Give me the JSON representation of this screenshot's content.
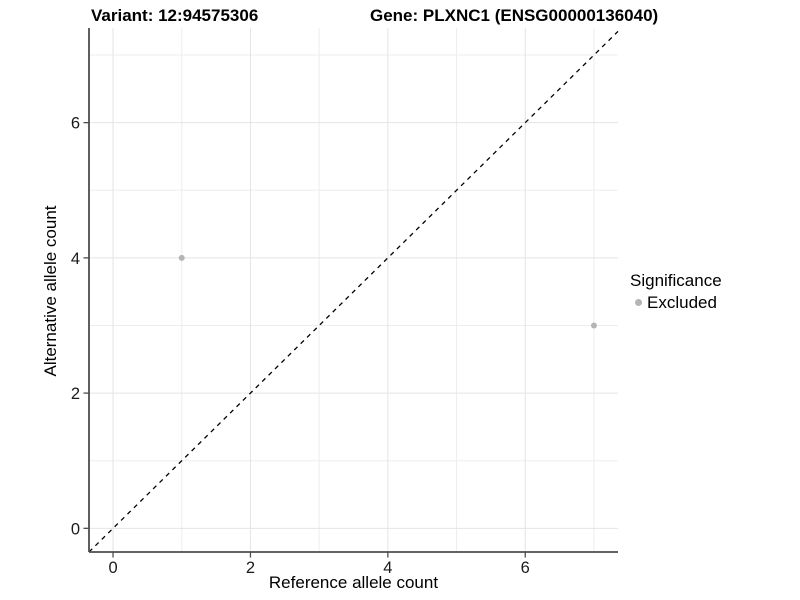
{
  "titles": {
    "variant": "Variant: 12:94575306",
    "gene": "Gene: PLXNC1 (ENSG00000136040)"
  },
  "chart_data": {
    "type": "scatter",
    "xlabel": "Reference allele count",
    "ylabel": "Alternative allele count",
    "xlim": [
      -0.35,
      7.35
    ],
    "ylim": [
      -0.35,
      7.4
    ],
    "x_ticks": [
      0,
      2,
      4,
      6
    ],
    "y_ticks": [
      0,
      2,
      4,
      6
    ],
    "x_minor_gridlines": [
      1,
      3,
      5,
      7
    ],
    "y_minor_gridlines": [
      1,
      3,
      5,
      7
    ],
    "grid": true,
    "points": [
      {
        "x": 1,
        "y": 4,
        "significance": "Excluded"
      },
      {
        "x": 7,
        "y": 3,
        "significance": "Excluded"
      }
    ],
    "reference_line": {
      "kind": "identity y=x",
      "style": "dashed",
      "color": "#000000"
    },
    "legend": {
      "title": "Significance",
      "position": "right",
      "entries": [
        {
          "label": "Excluded",
          "color": "#b5b5b5"
        }
      ]
    },
    "colors": {
      "point": "#b5b5b5",
      "major_grid": "#e4e4e4",
      "minor_grid": "#ededed",
      "axis_line": "#4d4d4d",
      "tick_text": "#1a1a1a",
      "background": "#ffffff"
    }
  }
}
